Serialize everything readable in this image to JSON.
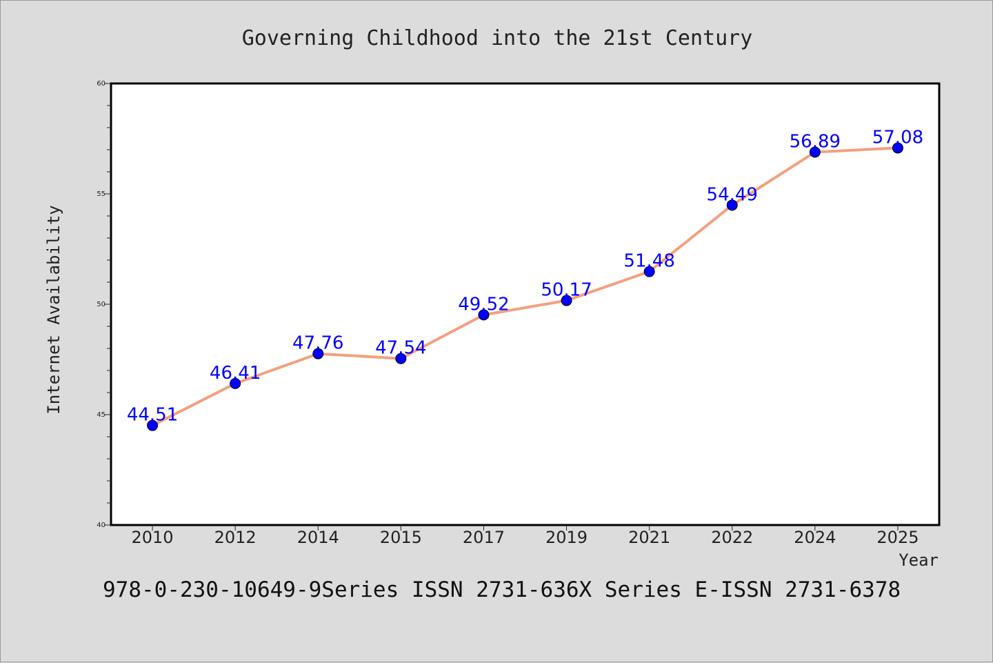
{
  "chart_data": {
    "type": "line",
    "title": "Governing Childhood into the 21st Century",
    "xlabel": "Year",
    "ylabel": "Internet Availability",
    "categories": [
      "2010",
      "2012",
      "2014",
      "2015",
      "2017",
      "2019",
      "2021",
      "2022",
      "2024",
      "2025"
    ],
    "series": [
      {
        "values": [
          44.51,
          46.41,
          47.76,
          47.54,
          49.52,
          50.17,
          51.48,
          54.49,
          56.89,
          57.08
        ],
        "labels": [
          "44.51",
          "46.41",
          "47.76",
          "47.54",
          "49.52",
          "50.17",
          "51.48",
          "54.49",
          "56.89",
          "57.08"
        ],
        "line_color": "#f4a07e",
        "marker_color": "#0000ff"
      }
    ],
    "ylim": [
      40,
      60
    ],
    "yticks": [
      "40",
      "45",
      "50",
      "55",
      "60"
    ],
    "grid": false,
    "legend": "none",
    "footer": "978-0-230-10649-9Series ISSN 2731-636X Series E-ISSN 2731-6378"
  }
}
